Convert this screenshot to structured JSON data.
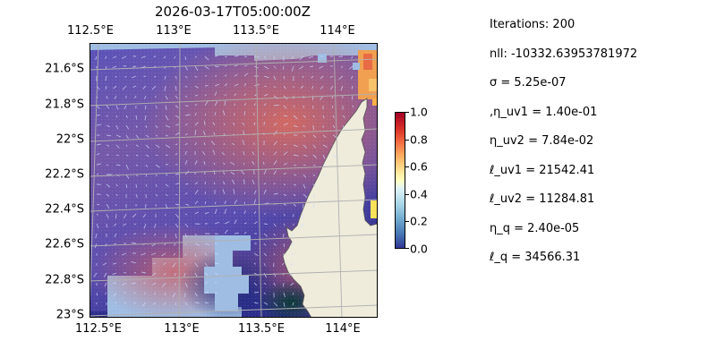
{
  "chart_data": {
    "type": "heatmap",
    "title": "2026-03-17T05:00:00Z",
    "x_ticks": [
      "112.5°E",
      "113°E",
      "113.5°E",
      "114°E"
    ],
    "x_tick_values": [
      112.5,
      113.0,
      113.5,
      114.0
    ],
    "y_ticks": [
      "21.6°S",
      "21.8°S",
      "22°S",
      "22.2°S",
      "22.4°S",
      "22.6°S",
      "22.8°S",
      "23°S"
    ],
    "y_tick_values": [
      -21.6,
      -21.8,
      -22.0,
      -22.2,
      -22.4,
      -22.6,
      -22.8,
      -23.0
    ],
    "xlim": [
      112.48,
      114.2
    ],
    "ylim": [
      -23.02,
      -21.5
    ],
    "grid": true,
    "colorbar": {
      "range": [
        0.0,
        1.0
      ],
      "ticks": [
        "0.0",
        "0.2",
        "0.4",
        "0.6",
        "0.8",
        "1.0"
      ],
      "colormap": "RdYlBu_r"
    },
    "overlays": [
      "ocean field",
      "current vectors",
      "coastline"
    ]
  },
  "stats": [
    "Iterations: 200",
    "nll: -10332.63953781972",
    "σ = 5.25e-07",
    ",η_uv1 = 1.40e-01",
    "η_uv2 = 7.84e-02",
    "ℓ_uv1 = 21542.41",
    "ℓ_uv2 = 11284.81",
    "η_q = 2.40e-05",
    "ℓ_q = 34566.31"
  ],
  "colors": {
    "land": "#efecdc",
    "masked": "#9fbde3",
    "grid": "#b0b0b0",
    "field_low": "#3d3aa0",
    "field_high": "#d9685c"
  }
}
